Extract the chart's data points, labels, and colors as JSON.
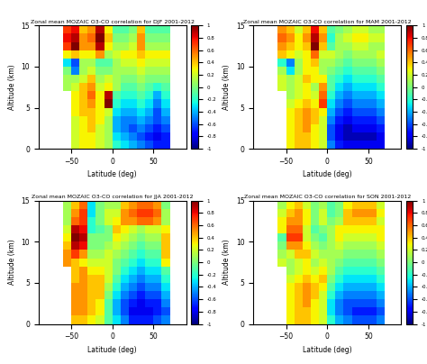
{
  "titles": [
    "Zonal mean MOZAIC O3-CO correlation for DJF 2001-2012",
    "Zonal mean MOZAIC O3-CO correlation for MAM 2001-2012",
    "Zonal mean MOZAIC O3-CO correlation for JJA 2001-2012",
    "Zonal mean MOZAIC O3-CO correlation for SON 2001-2012"
  ],
  "xlabel": "Latitude (deg)",
  "ylabel": "Altitude (km)",
  "lat_bins": [
    -90,
    -80,
    -70,
    -60,
    -50,
    -40,
    -30,
    -20,
    -10,
    0,
    10,
    20,
    30,
    40,
    50,
    60,
    70,
    80
  ],
  "alt_bins": [
    0,
    1,
    2,
    3,
    4,
    5,
    6,
    7,
    8,
    9,
    10,
    11,
    12,
    13,
    14,
    15
  ],
  "clim": [
    -1,
    1
  ],
  "figsize": [
    4.74,
    4.04
  ],
  "dpi": 100,
  "seasons": [
    "DJF",
    "MAM",
    "JJA",
    "SON"
  ],
  "DJF": [
    [
      null,
      null,
      null,
      null,
      0.2,
      0.3,
      0.3,
      0.2,
      0.1,
      -0.2,
      -0.3,
      -0.4,
      -0.5,
      -0.6,
      -0.7,
      -0.7,
      null,
      null
    ],
    [
      null,
      null,
      null,
      null,
      0.2,
      0.3,
      0.3,
      0.2,
      0.1,
      -0.3,
      -0.4,
      -0.5,
      -0.6,
      -0.7,
      -0.8,
      -0.7,
      null,
      null
    ],
    [
      null,
      null,
      null,
      null,
      0.2,
      0.3,
      0.4,
      0.2,
      0.1,
      -0.4,
      -0.5,
      -0.6,
      -0.5,
      -0.6,
      -0.7,
      -0.6,
      null,
      null
    ],
    [
      null,
      null,
      null,
      null,
      0.2,
      0.3,
      0.4,
      0.3,
      0.1,
      -0.4,
      -0.5,
      -0.5,
      -0.4,
      -0.5,
      -0.6,
      -0.5,
      null,
      null
    ],
    [
      null,
      null,
      null,
      null,
      0.3,
      0.4,
      0.4,
      0.3,
      0.2,
      -0.3,
      -0.4,
      -0.4,
      -0.3,
      -0.4,
      -0.6,
      -0.4,
      null,
      null
    ],
    [
      null,
      null,
      null,
      null,
      0.3,
      0.4,
      0.5,
      0.3,
      1.0,
      -0.2,
      -0.3,
      -0.3,
      -0.2,
      -0.3,
      -0.5,
      -0.3,
      null,
      null
    ],
    [
      null,
      null,
      null,
      null,
      0.3,
      0.4,
      0.6,
      0.3,
      0.9,
      -0.1,
      -0.2,
      -0.2,
      -0.1,
      -0.2,
      -0.4,
      -0.2,
      null,
      null
    ],
    [
      null,
      null,
      null,
      0.1,
      0.2,
      0.4,
      0.5,
      0.2,
      0.3,
      0.1,
      -0.1,
      -0.1,
      0.0,
      -0.1,
      -0.2,
      -0.1,
      null,
      null
    ],
    [
      null,
      null,
      null,
      0.1,
      0.1,
      0.2,
      0.4,
      0.1,
      0.2,
      0.1,
      0.0,
      0.0,
      0.1,
      0.0,
      0.0,
      0.0,
      null,
      null
    ],
    [
      null,
      null,
      null,
      0.0,
      -0.5,
      0.1,
      0.2,
      0.0,
      0.0,
      0.1,
      0.1,
      0.1,
      0.2,
      0.1,
      0.1,
      0.1,
      null,
      null
    ],
    [
      null,
      null,
      null,
      -0.3,
      -0.6,
      0.1,
      0.1,
      -0.1,
      -0.1,
      0.1,
      0.2,
      0.2,
      0.3,
      0.2,
      0.2,
      0.2,
      null,
      null
    ],
    [
      null,
      null,
      null,
      0.3,
      0.4,
      0.3,
      0.3,
      0.5,
      0.1,
      0.2,
      0.3,
      0.3,
      0.4,
      0.3,
      0.3,
      0.3,
      null,
      null
    ],
    [
      null,
      null,
      null,
      0.7,
      1.0,
      0.5,
      0.5,
      0.9,
      0.3,
      0.1,
      0.1,
      0.2,
      0.5,
      0.1,
      0.1,
      0.1,
      null,
      null
    ],
    [
      null,
      null,
      null,
      0.8,
      0.9,
      0.5,
      0.6,
      1.0,
      0.4,
      0.0,
      0.0,
      0.1,
      0.5,
      0.0,
      0.0,
      0.0,
      null,
      null
    ],
    [
      null,
      null,
      null,
      0.7,
      0.8,
      0.4,
      0.5,
      0.9,
      0.3,
      -0.1,
      -0.1,
      0.0,
      0.4,
      -0.1,
      -0.1,
      -0.1,
      null,
      null
    ]
  ],
  "MAM": [
    [
      null,
      null,
      null,
      null,
      0.3,
      0.4,
      0.4,
      0.3,
      0.2,
      -0.5,
      -0.7,
      -0.8,
      -0.8,
      -0.8,
      -0.8,
      -0.8,
      null,
      null
    ],
    [
      null,
      null,
      null,
      null,
      0.3,
      0.4,
      0.4,
      0.3,
      0.2,
      -0.6,
      -0.8,
      -0.9,
      -0.9,
      -0.9,
      -0.9,
      -0.8,
      null,
      null
    ],
    [
      null,
      null,
      null,
      null,
      0.3,
      0.4,
      0.5,
      0.3,
      0.2,
      -0.6,
      -0.8,
      -0.9,
      -0.8,
      -0.8,
      -0.8,
      -0.7,
      null,
      null
    ],
    [
      null,
      null,
      null,
      null,
      0.3,
      0.4,
      0.5,
      0.4,
      0.2,
      -0.5,
      -0.7,
      -0.8,
      -0.7,
      -0.7,
      -0.7,
      -0.6,
      null,
      null
    ],
    [
      null,
      null,
      null,
      null,
      0.3,
      0.4,
      0.5,
      0.4,
      0.3,
      -0.4,
      -0.6,
      -0.7,
      -0.6,
      -0.6,
      -0.6,
      -0.5,
      null,
      null
    ],
    [
      null,
      null,
      null,
      null,
      0.2,
      0.3,
      0.4,
      0.3,
      0.7,
      -0.3,
      -0.5,
      -0.6,
      -0.5,
      -0.5,
      -0.5,
      -0.4,
      null,
      null
    ],
    [
      null,
      null,
      null,
      null,
      0.1,
      0.2,
      0.3,
      0.2,
      0.6,
      -0.2,
      -0.4,
      -0.5,
      -0.4,
      -0.4,
      -0.4,
      -0.3,
      null,
      null
    ],
    [
      null,
      null,
      null,
      0.2,
      0.1,
      0.2,
      0.3,
      0.1,
      0.5,
      -0.1,
      -0.3,
      -0.4,
      -0.3,
      -0.3,
      -0.3,
      -0.2,
      null,
      null
    ],
    [
      null,
      null,
      null,
      0.2,
      0.1,
      0.2,
      0.4,
      0.3,
      0.3,
      -0.1,
      -0.2,
      -0.3,
      -0.2,
      -0.2,
      -0.2,
      -0.1,
      null,
      null
    ],
    [
      null,
      null,
      null,
      0.1,
      -0.3,
      0.1,
      0.3,
      0.3,
      0.1,
      0.0,
      -0.1,
      -0.2,
      -0.1,
      -0.1,
      -0.1,
      0.0,
      null,
      null
    ],
    [
      null,
      null,
      null,
      -0.2,
      -0.5,
      0.1,
      0.3,
      0.4,
      0.1,
      0.1,
      0.0,
      -0.1,
      0.0,
      0.0,
      0.0,
      0.1,
      null,
      null
    ],
    [
      null,
      null,
      null,
      0.4,
      0.3,
      0.2,
      0.3,
      0.6,
      0.2,
      0.2,
      0.1,
      0.0,
      0.1,
      0.1,
      0.1,
      0.2,
      null,
      null
    ],
    [
      null,
      null,
      null,
      0.5,
      0.4,
      0.3,
      0.4,
      1.0,
      0.4,
      -0.1,
      0.1,
      0.1,
      0.2,
      0.2,
      0.1,
      0.1,
      null,
      null
    ],
    [
      null,
      null,
      null,
      0.6,
      0.5,
      0.3,
      0.5,
      0.9,
      0.5,
      -0.2,
      0.1,
      0.2,
      0.3,
      0.3,
      0.2,
      0.2,
      null,
      null
    ],
    [
      null,
      null,
      null,
      0.5,
      0.4,
      0.2,
      0.4,
      0.8,
      0.4,
      -0.1,
      0.0,
      0.1,
      0.2,
      0.2,
      0.1,
      0.1,
      null,
      null
    ]
  ],
  "JJA": [
    [
      null,
      null,
      null,
      null,
      0.4,
      0.4,
      0.3,
      0.2,
      -0.1,
      -0.3,
      -0.5,
      -0.7,
      -0.7,
      -0.7,
      -0.6,
      -0.5,
      null,
      null
    ],
    [
      null,
      null,
      null,
      null,
      0.5,
      0.5,
      0.4,
      0.3,
      -0.1,
      -0.4,
      -0.6,
      -0.8,
      -0.8,
      -0.8,
      -0.7,
      -0.6,
      null,
      null
    ],
    [
      null,
      null,
      null,
      null,
      0.5,
      0.5,
      0.4,
      0.3,
      -0.1,
      -0.4,
      -0.6,
      -0.7,
      -0.8,
      -0.7,
      -0.7,
      -0.5,
      null,
      null
    ],
    [
      null,
      null,
      null,
      null,
      0.5,
      0.5,
      0.4,
      0.4,
      0.0,
      -0.3,
      -0.5,
      -0.6,
      -0.7,
      -0.6,
      -0.6,
      -0.4,
      null,
      null
    ],
    [
      null,
      null,
      null,
      null,
      0.5,
      0.5,
      0.4,
      0.4,
      0.1,
      -0.2,
      -0.4,
      -0.5,
      -0.6,
      -0.5,
      -0.5,
      -0.3,
      null,
      null
    ],
    [
      null,
      null,
      null,
      null,
      0.4,
      0.5,
      0.4,
      0.4,
      0.2,
      -0.1,
      -0.3,
      -0.4,
      -0.5,
      -0.4,
      -0.4,
      -0.2,
      null,
      null
    ],
    [
      null,
      null,
      null,
      null,
      0.4,
      0.5,
      0.3,
      0.3,
      0.2,
      0.0,
      -0.2,
      -0.3,
      -0.4,
      -0.3,
      -0.3,
      -0.1,
      null,
      null
    ],
    [
      null,
      null,
      null,
      0.5,
      0.4,
      0.3,
      0.2,
      0.2,
      0.2,
      0.0,
      -0.1,
      -0.2,
      -0.3,
      -0.2,
      -0.2,
      0.3,
      null,
      null
    ],
    [
      null,
      null,
      null,
      0.5,
      0.7,
      0.5,
      0.1,
      0.1,
      0.2,
      0.1,
      0.0,
      -0.1,
      -0.2,
      -0.1,
      -0.1,
      0.4,
      null,
      null
    ],
    [
      null,
      null,
      null,
      0.4,
      0.9,
      0.8,
      0.0,
      0.0,
      0.1,
      0.2,
      0.1,
      0.0,
      -0.1,
      0.0,
      0.0,
      0.4,
      null,
      null
    ],
    [
      null,
      null,
      null,
      0.3,
      1.0,
      0.9,
      0.0,
      0.0,
      0.0,
      0.3,
      0.2,
      0.1,
      0.0,
      0.1,
      0.1,
      0.4,
      null,
      null
    ],
    [
      null,
      null,
      null,
      0.2,
      0.9,
      0.8,
      -0.2,
      -0.1,
      0.0,
      0.4,
      0.3,
      0.2,
      0.1,
      0.2,
      0.2,
      0.3,
      null,
      null
    ],
    [
      null,
      null,
      null,
      0.1,
      0.6,
      0.7,
      -0.2,
      0.0,
      0.2,
      0.3,
      0.5,
      0.5,
      0.6,
      0.6,
      0.5,
      0.1,
      null,
      null
    ],
    [
      null,
      null,
      null,
      0.1,
      0.5,
      0.7,
      -0.3,
      0.0,
      0.2,
      0.2,
      0.5,
      0.6,
      0.7,
      0.7,
      0.6,
      0.1,
      null,
      null
    ],
    [
      null,
      null,
      null,
      0.1,
      0.4,
      0.6,
      -0.3,
      0.0,
      0.1,
      0.1,
      0.4,
      0.5,
      0.6,
      0.6,
      0.5,
      0.0,
      null,
      null
    ]
  ],
  "SON": [
    [
      null,
      null,
      null,
      null,
      0.3,
      0.4,
      0.4,
      0.3,
      0.2,
      -0.2,
      -0.4,
      -0.5,
      -0.6,
      -0.6,
      -0.6,
      -0.5,
      null,
      null
    ],
    [
      null,
      null,
      null,
      null,
      0.3,
      0.4,
      0.4,
      0.3,
      0.2,
      -0.3,
      -0.5,
      -0.6,
      -0.7,
      -0.7,
      -0.7,
      -0.6,
      null,
      null
    ],
    [
      null,
      null,
      null,
      null,
      0.3,
      0.4,
      0.5,
      0.3,
      0.2,
      -0.3,
      -0.5,
      -0.6,
      -0.6,
      -0.6,
      -0.6,
      -0.5,
      null,
      null
    ],
    [
      null,
      null,
      null,
      null,
      0.3,
      0.4,
      0.5,
      0.4,
      0.2,
      -0.2,
      -0.4,
      -0.5,
      -0.5,
      -0.5,
      -0.5,
      -0.4,
      null,
      null
    ],
    [
      null,
      null,
      null,
      null,
      0.3,
      0.4,
      0.5,
      0.4,
      0.3,
      -0.1,
      -0.3,
      -0.4,
      -0.4,
      -0.4,
      -0.4,
      -0.3,
      null,
      null
    ],
    [
      null,
      null,
      null,
      null,
      0.2,
      0.3,
      0.4,
      0.3,
      0.4,
      0.0,
      -0.2,
      -0.3,
      -0.3,
      -0.3,
      -0.3,
      -0.2,
      null,
      null
    ],
    [
      null,
      null,
      null,
      null,
      0.1,
      0.2,
      0.3,
      0.2,
      0.3,
      0.1,
      -0.1,
      -0.2,
      -0.2,
      -0.2,
      -0.2,
      -0.1,
      null,
      null
    ],
    [
      null,
      null,
      null,
      0.2,
      0.1,
      0.2,
      0.3,
      0.1,
      0.2,
      0.1,
      0.0,
      -0.1,
      -0.1,
      -0.1,
      -0.1,
      0.0,
      null,
      null
    ],
    [
      null,
      null,
      null,
      0.1,
      0.2,
      0.4,
      0.4,
      0.2,
      0.1,
      0.1,
      0.1,
      0.0,
      0.0,
      0.0,
      0.0,
      0.1,
      null,
      null
    ],
    [
      null,
      null,
      null,
      0.0,
      0.5,
      0.5,
      0.3,
      0.1,
      0.0,
      0.1,
      0.2,
      0.1,
      0.1,
      0.1,
      0.1,
      0.2,
      null,
      null
    ],
    [
      null,
      null,
      null,
      -0.1,
      0.7,
      0.7,
      0.2,
      0.0,
      -0.1,
      0.1,
      0.3,
      0.2,
      0.2,
      0.2,
      0.2,
      0.3,
      null,
      null
    ],
    [
      null,
      null,
      null,
      0.3,
      0.6,
      0.6,
      0.2,
      -0.1,
      0.0,
      0.1,
      0.3,
      0.3,
      0.3,
      0.3,
      0.3,
      0.3,
      null,
      null
    ],
    [
      null,
      null,
      null,
      0.3,
      0.5,
      0.5,
      0.3,
      0.0,
      0.2,
      0.0,
      0.1,
      0.4,
      0.4,
      0.4,
      0.4,
      0.2,
      null,
      null
    ],
    [
      null,
      null,
      null,
      0.2,
      0.4,
      0.5,
      0.3,
      0.0,
      0.2,
      -0.1,
      0.0,
      0.4,
      0.5,
      0.5,
      0.5,
      0.3,
      null,
      null
    ],
    [
      null,
      null,
      null,
      0.1,
      0.3,
      0.4,
      0.2,
      0.0,
      0.1,
      -0.1,
      0.0,
      0.3,
      0.4,
      0.4,
      0.4,
      0.2,
      null,
      null
    ]
  ]
}
